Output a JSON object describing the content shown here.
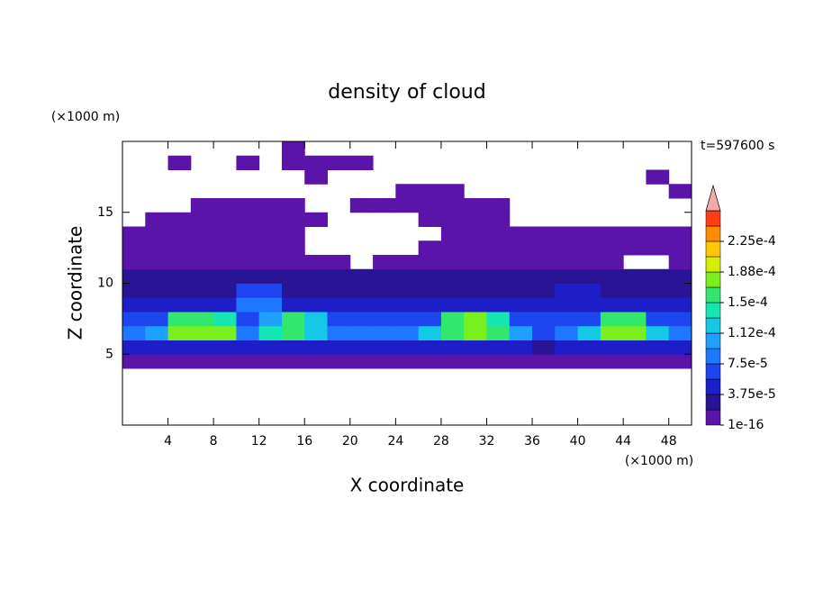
{
  "chart_data": {
    "type": "contour",
    "title": "density of cloud",
    "x_label": "X coordinate",
    "y_label": "Z coordinate",
    "x_unit": "(×1000 m)",
    "y_unit": "(×1000 m)",
    "annotation": "t=597600 s",
    "xlim": [
      0,
      50
    ],
    "ylim": [
      0,
      20
    ],
    "xticks": [
      4,
      8,
      12,
      16,
      20,
      24,
      28,
      32,
      36,
      40,
      44,
      48
    ],
    "yticks": [
      5,
      10,
      15
    ],
    "x": [
      1,
      3,
      5,
      7,
      9,
      11,
      13,
      15,
      17,
      19,
      21,
      23,
      25,
      27,
      29,
      31,
      33,
      35,
      37,
      39,
      41,
      43,
      45,
      47,
      49
    ],
    "y": [
      4.5,
      5.5,
      6.5,
      7.5,
      8.5,
      9.5,
      10.5,
      11.5,
      12.5,
      13.5,
      14.5,
      15.5,
      16.5,
      17.5,
      18.5,
      19.5
    ],
    "z": [
      [
        1e-05,
        1e-05,
        1e-05,
        1e-05,
        1e-05,
        1e-05,
        1e-05,
        1e-05,
        1e-05,
        1e-05,
        1e-05,
        1e-05,
        1e-05,
        1e-05,
        1e-05,
        1e-05,
        1e-05,
        1e-05,
        1e-05,
        1e-05,
        1e-05,
        1e-05,
        1e-05,
        1e-05,
        1e-05
      ],
      [
        5e-05,
        5e-05,
        5e-05,
        5e-05,
        5e-05,
        5e-05,
        5e-05,
        5e-05,
        5e-05,
        5e-05,
        5e-05,
        5e-05,
        5e-05,
        5e-05,
        5e-05,
        5e-05,
        5e-05,
        5e-05,
        2e-05,
        5e-05,
        5e-05,
        5e-05,
        5e-05,
        5e-05,
        5e-05
      ],
      [
        9e-05,
        0.00011,
        0.00017,
        0.00017,
        0.00017,
        9e-05,
        0.00014,
        0.00016,
        0.00013,
        8e-05,
        8e-05,
        8e-05,
        8e-05,
        0.00012,
        0.00016,
        0.00018,
        0.00016,
        0.00011,
        6e-05,
        9e-05,
        0.00013,
        0.00018,
        0.00017,
        0.00012,
        9e-05
      ],
      [
        6e-05,
        6e-05,
        0.00015,
        0.00016,
        0.00014,
        6e-05,
        0.00011,
        0.00015,
        0.00012,
        6e-05,
        6e-05,
        6e-05,
        6e-05,
        6e-05,
        0.00015,
        0.00017,
        0.00014,
        6e-05,
        6e-05,
        6e-05,
        6e-05,
        0.00016,
        0.00015,
        6e-05,
        6e-05
      ],
      [
        5e-05,
        5e-05,
        5e-05,
        5e-05,
        5e-05,
        8e-05,
        8e-05,
        5e-05,
        5e-05,
        5e-05,
        5e-05,
        5e-05,
        5e-05,
        5e-05,
        5e-05,
        5e-05,
        5e-05,
        5e-05,
        5e-05,
        5e-05,
        5e-05,
        5e-05,
        5e-05,
        5e-05,
        5e-05
      ],
      [
        3.5e-05,
        3.5e-05,
        3.5e-05,
        3.5e-05,
        3.5e-05,
        6e-05,
        6e-05,
        3.5e-05,
        3.5e-05,
        3.5e-05,
        3.5e-05,
        3.5e-05,
        3.5e-05,
        3.5e-05,
        3.5e-05,
        3.5e-05,
        3.5e-05,
        3.5e-05,
        3.5e-05,
        5e-05,
        5e-05,
        3.5e-05,
        3.5e-05,
        3.5e-05,
        3.5e-05
      ],
      [
        2.5e-05,
        2.5e-05,
        2.5e-05,
        2.5e-05,
        2.5e-05,
        2.5e-05,
        2.5e-05,
        2.5e-05,
        2.5e-05,
        2.5e-05,
        2.5e-05,
        2.5e-05,
        2.5e-05,
        2.5e-05,
        2.5e-05,
        2.5e-05,
        2.5e-05,
        2.5e-05,
        2.5e-05,
        2.5e-05,
        2.5e-05,
        2.5e-05,
        2.5e-05,
        2.5e-05,
        2.5e-05
      ],
      [
        1.5e-05,
        1.5e-05,
        1.5e-05,
        1.5e-05,
        1.5e-05,
        1.5e-05,
        1.5e-05,
        1.5e-05,
        1.5e-05,
        1.5e-05,
        null,
        1.5e-05,
        1.5e-05,
        1.5e-05,
        1.5e-05,
        1.5e-05,
        1.5e-05,
        1.5e-05,
        1.5e-05,
        1.5e-05,
        1.5e-05,
        1.5e-05,
        null,
        null,
        1.5e-05
      ],
      [
        1e-05,
        1e-05,
        1e-05,
        1e-05,
        1e-05,
        1e-05,
        1e-05,
        1e-05,
        null,
        null,
        null,
        null,
        null,
        1e-05,
        1e-05,
        1e-05,
        1e-05,
        1e-05,
        1e-05,
        1e-05,
        1e-05,
        1e-05,
        1e-05,
        1e-05,
        1e-05
      ],
      [
        5e-06,
        5e-06,
        5e-06,
        5e-06,
        5e-06,
        5e-06,
        5e-06,
        5e-06,
        null,
        null,
        null,
        null,
        null,
        null,
        5e-06,
        5e-06,
        5e-06,
        5e-06,
        5e-06,
        5e-06,
        5e-06,
        5e-06,
        5e-06,
        5e-06,
        5e-06
      ],
      [
        null,
        5e-06,
        5e-06,
        5e-06,
        5e-06,
        5e-06,
        5e-06,
        5e-06,
        5e-06,
        null,
        null,
        null,
        null,
        5e-06,
        5e-06,
        5e-06,
        5e-06,
        null,
        null,
        null,
        null,
        null,
        null,
        null,
        null
      ],
      [
        null,
        null,
        null,
        5e-06,
        5e-06,
        5e-06,
        5e-06,
        5e-06,
        null,
        null,
        5e-06,
        5e-06,
        5e-06,
        5e-06,
        5e-06,
        5e-06,
        5e-06,
        null,
        null,
        null,
        null,
        null,
        null,
        null,
        null
      ],
      [
        null,
        null,
        null,
        null,
        null,
        null,
        null,
        null,
        null,
        null,
        null,
        null,
        5e-06,
        5e-06,
        5e-06,
        null,
        null,
        null,
        null,
        null,
        null,
        null,
        null,
        null,
        5e-06
      ],
      [
        null,
        null,
        null,
        null,
        null,
        null,
        null,
        null,
        5e-06,
        null,
        null,
        null,
        null,
        null,
        null,
        null,
        null,
        null,
        null,
        null,
        null,
        null,
        null,
        5e-06,
        null
      ],
      [
        null,
        null,
        5e-06,
        null,
        null,
        5e-06,
        null,
        5e-06,
        5e-06,
        5e-06,
        5e-06,
        null,
        null,
        null,
        null,
        null,
        null,
        null,
        null,
        null,
        null,
        null,
        null,
        null,
        null
      ],
      [
        null,
        null,
        null,
        null,
        null,
        null,
        null,
        5e-06,
        null,
        null,
        null,
        null,
        null,
        null,
        null,
        null,
        null,
        null,
        null,
        null,
        null,
        null,
        null,
        null,
        null
      ]
    ],
    "levels": [
      1e-16,
      1.875e-05,
      3.75e-05,
      5.625e-05,
      7.5e-05,
      9.375e-05,
      0.0001125,
      0.00013125,
      0.00015,
      0.00016875,
      0.0001875,
      0.00020625,
      0.000225,
      0.00024375
    ],
    "colors": [
      "#5a14aa",
      "#2a1496",
      "#1e1ec8",
      "#1e46f0",
      "#1e78ff",
      "#1ea0ff",
      "#14c8e6",
      "#14e6b4",
      "#32e66e",
      "#78f01e",
      "#d2f000",
      "#ffc800",
      "#ff8c00",
      "#ff3c14"
    ],
    "extend_color": "#f4a8a8",
    "cticks": [
      1e-16,
      {
        "value": 3.75e-05,
        "label": "3.75e-5"
      },
      {
        "value": 7.5e-05,
        "label": "7.5e-5"
      },
      {
        "value": 0.0001125,
        "label": "1.12e-4"
      },
      {
        "value": 0.00015,
        "label": "1.5e-4"
      },
      {
        "value": 0.0001875,
        "label": "1.88e-4"
      },
      {
        "value": 0.000225,
        "label": "2.25e-4"
      }
    ]
  }
}
